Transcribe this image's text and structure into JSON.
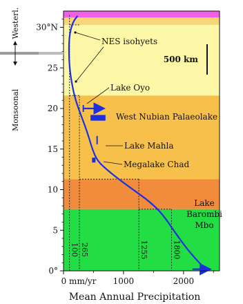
{
  "chart_data": {
    "type": "line",
    "xlabel": "Mean Annual Precipitation",
    "x_unit_label": "0 mm/yr",
    "xlim": [
      0,
      2600
    ],
    "ylim": [
      0,
      32
    ],
    "x_ticks": [
      {
        "value": 1000,
        "label": "1000"
      },
      {
        "value": 2000,
        "label": "2000"
      }
    ],
    "y_ticks": [
      {
        "value": 0,
        "label": "0°"
      },
      {
        "value": 5,
        "label": "5"
      },
      {
        "value": 10,
        "label": "10"
      },
      {
        "value": 15,
        "label": "15"
      },
      {
        "value": 20,
        "label": "20"
      },
      {
        "value": 25,
        "label": "25"
      },
      {
        "value": 30,
        "label": "30°N"
      }
    ],
    "bands": [
      {
        "y0": 0,
        "y1": 7.6,
        "color": "#22dd44"
      },
      {
        "y0": 7.6,
        "y1": 11.3,
        "color": "#f08c3c"
      },
      {
        "y0": 11.3,
        "y1": 21.6,
        "color": "#f7c04a"
      },
      {
        "y0": 21.6,
        "y1": 30.3,
        "color": "#fdf7a8"
      },
      {
        "y0": 30.3,
        "y1": 31.2,
        "color": "#f9d57a"
      },
      {
        "y0": 31.2,
        "y1": 32,
        "color": "#f060e6"
      }
    ],
    "series": [
      {
        "color": "#1c2fe0",
        "points": [
          [
            2400,
            0
          ],
          [
            2260,
            1
          ],
          [
            2080,
            2.5
          ],
          [
            1880,
            4.5
          ],
          [
            1650,
            7
          ],
          [
            1440,
            8.5
          ],
          [
            1160,
            10
          ],
          [
            900,
            11.4
          ],
          [
            700,
            12.6
          ],
          [
            560,
            13.6
          ],
          [
            480,
            15
          ],
          [
            400,
            17
          ],
          [
            300,
            19
          ],
          [
            200,
            21
          ],
          [
            140,
            23
          ],
          [
            100,
            25
          ],
          [
            90,
            27
          ],
          [
            95,
            28.6
          ],
          [
            120,
            29.8
          ],
          [
            170,
            30.8
          ],
          [
            235,
            31.4
          ]
        ]
      }
    ],
    "contours": [
      {
        "value": 100,
        "label": "100",
        "y_top": 31.5
      },
      {
        "value": 265,
        "label": "265",
        "y_top": 21.5
      },
      {
        "value": 1255,
        "label": "1255",
        "y_top": 11.3
      },
      {
        "value": 1800,
        "label": "1800",
        "y_top": 7.6
      }
    ],
    "regimes": [
      {
        "label": "Westerl.",
        "y_from": 26.8,
        "y_to": 32
      },
      {
        "label": "Monsoonal",
        "y_from": 0,
        "y_to": 26.8
      }
    ],
    "regime_boundary_y": 26.8,
    "annotations": {
      "nes_isohyets": "NES isohyets",
      "scale_bar": "500 km",
      "lake_oyo": "Lake Oyo",
      "west_nubian": "West Nubian Palaeolake",
      "lake_mahla": "Lake Mahla",
      "megalake_chad": "Megalake Chad",
      "lake_barombi_line1": "Lake",
      "lake_barombi_line2": "Barombi",
      "lake_barombi_line3": "Mbo"
    },
    "lake_markers": [
      {
        "name": "Lake Oyo",
        "x": 330,
        "y": 20
      },
      {
        "name": "West Nubian Palaeolake",
        "x0": 450,
        "x1": 700,
        "y0": 18.5,
        "y1": 19.2
      },
      {
        "name": "Lake Mahla",
        "x": 560,
        "y": 16.1
      },
      {
        "name": "Megalake Chad",
        "x": 510,
        "y": 13.6
      }
    ]
  }
}
